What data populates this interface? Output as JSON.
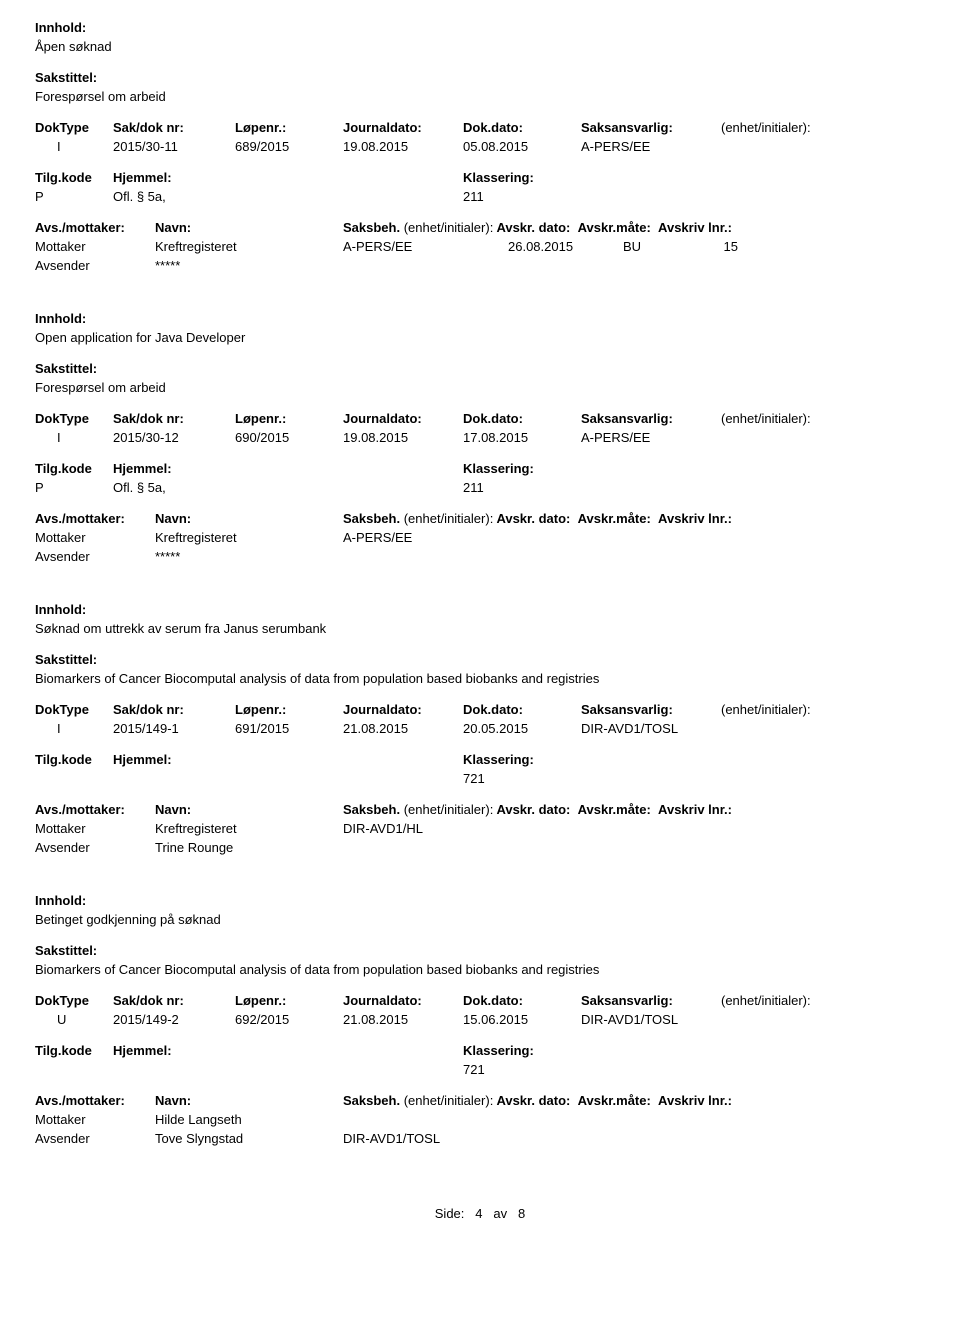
{
  "labels": {
    "innhold": "Innhold:",
    "sakstittel": "Sakstittel:",
    "doktype": "DokType",
    "sakdok": "Sak/dok nr:",
    "lopenr": "Løpenr.:",
    "journaldato": "Journaldato:",
    "dokdato": "Dok.dato:",
    "saksansvarlig": "Saksansvarlig:",
    "enhet_initialer": "(enhet/initialer):",
    "tilgkode": "Tilg.kode",
    "hjemmel": "Hjemmel:",
    "klassering": "Klassering:",
    "avs_mottaker": "Avs./mottaker:",
    "navn": "Navn:",
    "saksbeh": "Saksbeh.",
    "saksbeh_suffix": "(enhet/initialer):",
    "avskr_dato": "Avskr. dato:",
    "avskr_mate": "Avskr.måte:",
    "avskriv_lnr": "Avskriv lnr.:"
  },
  "records": [
    {
      "innhold": "Åpen søknad",
      "sakstittel": "Forespørsel om arbeid",
      "doktype": "I",
      "sakdok": "2015/30-11",
      "lopenr": "689/2015",
      "journaldato": "19.08.2015",
      "dokdato": "05.08.2015",
      "saksansvarlig": "A-PERS/EE",
      "enhet_initialer": "",
      "tilgkode": "P",
      "hjemmel": "Ofl. § 5a,",
      "klassering": "211",
      "correspondents": [
        {
          "role": "Mottaker",
          "navn": "Kreftregisteret",
          "saksbeh": "A-PERS/EE",
          "avskr_dato": "26.08.2015",
          "avskr_mate": "BU",
          "avskriv_lnr": "15"
        },
        {
          "role": "Avsender",
          "navn": "*****",
          "saksbeh": "",
          "avskr_dato": "",
          "avskr_mate": "",
          "avskriv_lnr": ""
        }
      ]
    },
    {
      "innhold": "Open application for Java Developer",
      "sakstittel": "Forespørsel om arbeid",
      "doktype": "I",
      "sakdok": "2015/30-12",
      "lopenr": "690/2015",
      "journaldato": "19.08.2015",
      "dokdato": "17.08.2015",
      "saksansvarlig": "A-PERS/EE",
      "enhet_initialer": "",
      "tilgkode": "P",
      "hjemmel": "Ofl. § 5a,",
      "klassering": "211",
      "correspondents": [
        {
          "role": "Mottaker",
          "navn": "Kreftregisteret",
          "saksbeh": "A-PERS/EE",
          "avskr_dato": "",
          "avskr_mate": "",
          "avskriv_lnr": ""
        },
        {
          "role": "Avsender",
          "navn": "*****",
          "saksbeh": "",
          "avskr_dato": "",
          "avskr_mate": "",
          "avskriv_lnr": ""
        }
      ]
    },
    {
      "innhold": "Søknad om uttrekk av serum fra Janus serumbank",
      "sakstittel": "Biomarkers of Cancer Biocomputal analysis of data from population based biobanks and registries",
      "doktype": "I",
      "sakdok": "2015/149-1",
      "lopenr": "691/2015",
      "journaldato": "21.08.2015",
      "dokdato": "20.05.2015",
      "saksansvarlig": "DIR-AVD1/TOSL",
      "enhet_initialer": "",
      "tilgkode": "",
      "hjemmel": "",
      "klassering": "721",
      "correspondents": [
        {
          "role": "Mottaker",
          "navn": "Kreftregisteret",
          "saksbeh": "DIR-AVD1/HL",
          "avskr_dato": "",
          "avskr_mate": "",
          "avskriv_lnr": ""
        },
        {
          "role": "Avsender",
          "navn": "Trine Rounge",
          "saksbeh": "",
          "avskr_dato": "",
          "avskr_mate": "",
          "avskriv_lnr": ""
        }
      ]
    },
    {
      "innhold": "Betinget godkjenning på søknad",
      "sakstittel": "Biomarkers of Cancer Biocomputal analysis of data from population based biobanks and registries",
      "doktype": "U",
      "sakdok": "2015/149-2",
      "lopenr": "692/2015",
      "journaldato": "21.08.2015",
      "dokdato": "15.06.2015",
      "saksansvarlig": "DIR-AVD1/TOSL",
      "enhet_initialer": "",
      "tilgkode": "",
      "hjemmel": "",
      "klassering": "721",
      "correspondents": [
        {
          "role": "Mottaker",
          "navn": "Hilde Langseth",
          "saksbeh": "",
          "avskr_dato": "",
          "avskr_mate": "",
          "avskriv_lnr": ""
        },
        {
          "role": "Avsender",
          "navn": "Tove Slyngstad",
          "saksbeh": "DIR-AVD1/TOSL",
          "avskr_dato": "",
          "avskr_mate": "",
          "avskriv_lnr": ""
        }
      ]
    }
  ],
  "footer": {
    "side": "Side:",
    "page": "4",
    "av": "av",
    "total": "8"
  }
}
